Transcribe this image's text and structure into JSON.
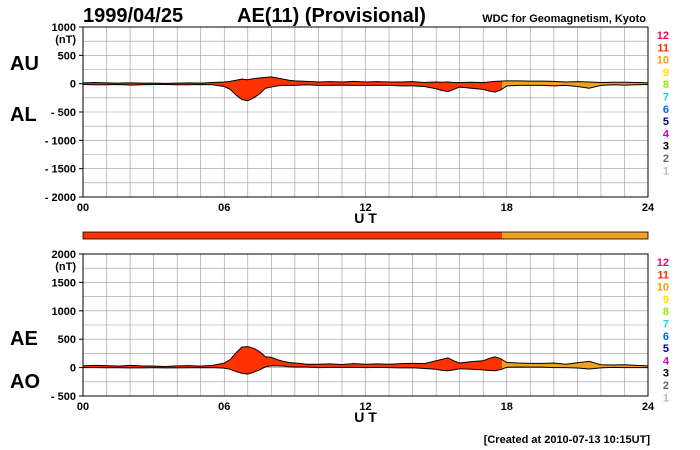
{
  "header": {
    "date": "1999/04/25",
    "title": "AE(11) (Provisional)",
    "source": "WDC for Geomagnetism, Kyoto"
  },
  "footer": {
    "created": "[Created at 2010-07-13 10:15UT]"
  },
  "legend": {
    "items": [
      {
        "label": "12",
        "color": "#ff0066"
      },
      {
        "label": "11",
        "color": "#ff2a00"
      },
      {
        "label": "10",
        "color": "#f0a000"
      },
      {
        "label": "9",
        "color": "#ffe000"
      },
      {
        "label": "8",
        "color": "#99ee00"
      },
      {
        "label": "7",
        "color": "#22ccee"
      },
      {
        "label": "6",
        "color": "#0066ff"
      },
      {
        "label": "5",
        "color": "#000099"
      },
      {
        "label": "4",
        "color": "#cc00cc"
      },
      {
        "label": "3",
        "color": "#000000"
      },
      {
        "label": "2",
        "color": "#666666"
      },
      {
        "label": "1",
        "color": "#bbbbbb"
      }
    ]
  },
  "colors": {
    "stations_11": "#ff3300",
    "stations_10": "#f0a020",
    "grid": "#999999",
    "axis": "#000000"
  },
  "station_bar": [
    {
      "from": 0,
      "to": 17.8,
      "count": 11
    },
    {
      "from": 17.8,
      "to": 24,
      "count": 10
    }
  ],
  "chart_data": [
    {
      "type": "area",
      "name": "AU/AL",
      "ylabel_upper": "AU",
      "ylabel_lower": "AL",
      "unit": "(nT)",
      "xlabel": "U T",
      "xlim": [
        0,
        24
      ],
      "ylim": [
        -2000,
        1000
      ],
      "x_ticks": [
        "00",
        "06",
        "12",
        "18",
        "24"
      ],
      "y_ticks": [
        "1000",
        "500",
        "0",
        "- 500",
        "- 1000",
        "- 1500",
        "- 2000"
      ],
      "y_tick_values": [
        1000,
        500,
        0,
        -500,
        -1000,
        -1500,
        -2000
      ],
      "x": [
        0,
        0.5,
        1,
        1.5,
        2,
        2.5,
        3,
        3.5,
        4,
        4.5,
        5,
        5.5,
        6,
        6.25,
        6.5,
        6.75,
        7,
        7.25,
        7.5,
        7.75,
        8,
        8.25,
        8.5,
        8.75,
        9,
        9.5,
        10,
        10.5,
        11,
        11.5,
        12,
        12.5,
        13,
        13.5,
        14,
        14.5,
        15,
        15.25,
        15.5,
        15.75,
        16,
        16.5,
        17,
        17.25,
        17.5,
        17.75,
        18,
        18.5,
        19,
        19.5,
        20,
        20.5,
        21,
        21.5,
        22,
        22.5,
        23,
        23.5,
        24
      ],
      "series": [
        {
          "name": "AU",
          "values": [
            15,
            20,
            15,
            10,
            15,
            10,
            10,
            5,
            10,
            15,
            10,
            20,
            30,
            40,
            60,
            80,
            70,
            90,
            100,
            110,
            120,
            100,
            80,
            60,
            50,
            40,
            30,
            35,
            30,
            40,
            30,
            35,
            30,
            30,
            35,
            20,
            30,
            25,
            30,
            20,
            20,
            25,
            20,
            30,
            40,
            45,
            50,
            50,
            45,
            45,
            40,
            30,
            35,
            30,
            20,
            25,
            25,
            20,
            15
          ]
        },
        {
          "name": "AL",
          "values": [
            -15,
            -20,
            -20,
            -15,
            -25,
            -20,
            -15,
            -15,
            -20,
            -20,
            -15,
            -20,
            -50,
            -100,
            -200,
            -280,
            -300,
            -250,
            -180,
            -80,
            -60,
            -40,
            -30,
            -30,
            -30,
            -20,
            -30,
            -30,
            -25,
            -30,
            -30,
            -30,
            -30,
            -40,
            -40,
            -50,
            -90,
            -120,
            -140,
            -100,
            -60,
            -80,
            -100,
            -130,
            -150,
            -110,
            -40,
            -30,
            -30,
            -30,
            -40,
            -30,
            -50,
            -80,
            -30,
            -20,
            -25,
            -20,
            -15
          ]
        }
      ]
    },
    {
      "type": "area",
      "name": "AE/AO",
      "ylabel_upper": "AE",
      "ylabel_lower": "AO",
      "unit": "(nT)",
      "xlabel": "U T",
      "xlim": [
        0,
        24
      ],
      "ylim": [
        -500,
        2000
      ],
      "x_ticks": [
        "00",
        "06",
        "12",
        "18",
        "24"
      ],
      "y_ticks": [
        "2000",
        "1500",
        "1000",
        "500",
        "0",
        "- 500"
      ],
      "y_tick_values": [
        2000,
        1500,
        1000,
        500,
        0,
        -500
      ],
      "x": [
        0,
        0.5,
        1,
        1.5,
        2,
        2.5,
        3,
        3.5,
        4,
        4.5,
        5,
        5.5,
        6,
        6.25,
        6.5,
        6.75,
        7,
        7.25,
        7.5,
        7.75,
        8,
        8.25,
        8.5,
        8.75,
        9,
        9.5,
        10,
        10.5,
        11,
        11.5,
        12,
        12.5,
        13,
        13.5,
        14,
        14.5,
        15,
        15.25,
        15.5,
        15.75,
        16,
        16.5,
        17,
        17.25,
        17.5,
        17.75,
        18,
        18.5,
        19,
        19.5,
        20,
        20.5,
        21,
        21.5,
        22,
        22.5,
        23,
        23.5,
        24
      ],
      "series": [
        {
          "name": "AE",
          "values": [
            30,
            40,
            35,
            25,
            40,
            30,
            25,
            20,
            30,
            35,
            25,
            40,
            80,
            140,
            260,
            360,
            370,
            340,
            280,
            190,
            180,
            140,
            110,
            90,
            80,
            60,
            60,
            65,
            55,
            70,
            60,
            65,
            60,
            70,
            75,
            70,
            120,
            145,
            170,
            120,
            80,
            105,
            120,
            160,
            190,
            155,
            90,
            80,
            75,
            75,
            80,
            60,
            85,
            110,
            50,
            45,
            50,
            40,
            30
          ]
        },
        {
          "name": "AO",
          "values": [
            0,
            0,
            -3,
            -3,
            -5,
            -5,
            -3,
            -5,
            -5,
            -3,
            -3,
            0,
            -10,
            -30,
            -70,
            -100,
            -115,
            -80,
            -40,
            15,
            30,
            30,
            25,
            15,
            10,
            10,
            0,
            3,
            3,
            5,
            0,
            3,
            0,
            -5,
            -3,
            -15,
            -30,
            -48,
            -55,
            -40,
            -20,
            -28,
            -40,
            -50,
            -55,
            -33,
            5,
            10,
            8,
            8,
            0,
            0,
            -8,
            -25,
            -5,
            3,
            0,
            0,
            0
          ]
        }
      ]
    }
  ]
}
